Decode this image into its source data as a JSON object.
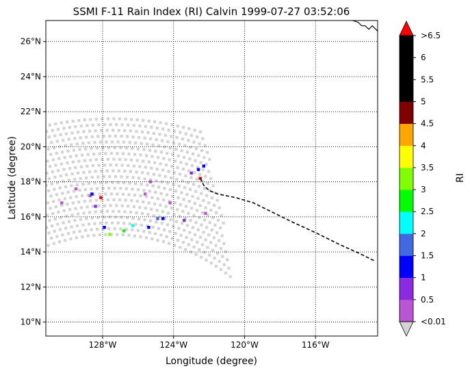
{
  "chart_data": {
    "type": "heatmap",
    "title": "SSMI F-11 Rain Index (RI) Calvin 1999-07-27 03:52:06",
    "xlabel": "Longitude (degree)",
    "ylabel": "Latitude (degree)",
    "xlim": [
      -131.2,
      -112.5
    ],
    "ylim": [
      9.2,
      27.2
    ],
    "x_ticks": [
      -128,
      -124,
      -120,
      -116
    ],
    "x_tick_labels": [
      "128°W",
      "124°W",
      "120°W",
      "116°W"
    ],
    "y_ticks": [
      10,
      12,
      14,
      16,
      18,
      20,
      22,
      24,
      26
    ],
    "y_tick_labels": [
      "10°N",
      "12°N",
      "14°N",
      "16°N",
      "18°N",
      "20°N",
      "22°N",
      "24°N",
      "26°N"
    ],
    "grid": true,
    "swath": {
      "center": [
        -127.5,
        4.5
      ],
      "inner_radius_deg": 10.5,
      "outer_radius_deg": 17.2,
      "left_edge_lon": -131.2,
      "right_edge_lon": [
        -122.3,
        -120.6
      ],
      "no_rain_color": "#d3d3d3"
    },
    "rain_pixels": [
      {
        "lon": -130.3,
        "lat": 16.8,
        "ri": 0.3
      },
      {
        "lon": -129.5,
        "lat": 17.6,
        "ri": 0.3
      },
      {
        "lon": -128.7,
        "lat": 17.2,
        "ri": 0.3
      },
      {
        "lon": -128.4,
        "lat": 16.6,
        "ri": 0.6
      },
      {
        "lon": -128.6,
        "lat": 17.3,
        "ri": 1.2
      },
      {
        "lon": -128.1,
        "lat": 17.1,
        "ri": 6.8
      },
      {
        "lon": -125.6,
        "lat": 17.3,
        "ri": 0.3
      },
      {
        "lon": -125.3,
        "lat": 18.0,
        "ri": 0.3
      },
      {
        "lon": -124.2,
        "lat": 16.8,
        "ri": 0.3
      },
      {
        "lon": -127.6,
        "lat": 15.0,
        "ri": 3.0
      },
      {
        "lon": -126.8,
        "lat": 15.2,
        "ri": 2.8
      },
      {
        "lon": -126.3,
        "lat": 15.5,
        "ri": 2.2
      },
      {
        "lon": -127.9,
        "lat": 15.4,
        "ri": 1.2
      },
      {
        "lon": -125.4,
        "lat": 15.4,
        "ri": 1.2
      },
      {
        "lon": -124.6,
        "lat": 15.9,
        "ri": 1.3
      },
      {
        "lon": -124.9,
        "lat": 15.9,
        "ri": 1.7
      },
      {
        "lon": -122.3,
        "lat": 18.9,
        "ri": 1.2
      },
      {
        "lon": -122.6,
        "lat": 18.7,
        "ri": 1.4
      },
      {
        "lon": -122.5,
        "lat": 18.2,
        "ri": 6.8
      },
      {
        "lon": -123.0,
        "lat": 18.5,
        "ri": 0.7
      },
      {
        "lon": -122.2,
        "lat": 16.2,
        "ri": 0.3
      },
      {
        "lon": -123.4,
        "lat": 15.8,
        "ri": 0.8
      }
    ],
    "track": [
      [
        -122.5,
        18.2
      ],
      [
        -122.3,
        17.8
      ],
      [
        -122.0,
        17.5
      ],
      [
        -121.5,
        17.3
      ],
      [
        -120.5,
        17.1
      ],
      [
        -119.5,
        16.8
      ],
      [
        -118.5,
        16.3
      ],
      [
        -117.3,
        15.7
      ],
      [
        -116.0,
        15.1
      ],
      [
        -114.6,
        14.4
      ],
      [
        -113.5,
        13.9
      ],
      [
        -112.7,
        13.5
      ]
    ],
    "coastline": [
      [
        -113.9,
        27.2
      ],
      [
        -113.6,
        27.1
      ],
      [
        -113.4,
        26.9
      ],
      [
        -113.2,
        26.9
      ],
      [
        -113.0,
        26.7
      ],
      [
        -112.8,
        26.9
      ],
      [
        -112.6,
        26.7
      ],
      [
        -112.5,
        26.6
      ]
    ],
    "colorbar": {
      "label": "RI",
      "levels": [
        0.01,
        0.5,
        1,
        1.5,
        2,
        2.5,
        3,
        3.5,
        4,
        4.5,
        5,
        5.5,
        6,
        6.5
      ],
      "tick_labels": [
        "<0.01",
        "0.5",
        "1",
        "1.5",
        "2",
        "2.5",
        "3",
        "3.5",
        "4",
        "4.5",
        "5",
        "5.5",
        "6",
        ">6.5"
      ],
      "colors": [
        "#ba55d3",
        "#8a2be2",
        "#0000ff",
        "#4169e1",
        "#00ffff",
        "#00ff00",
        "#7fff00",
        "#ffff00",
        "#ffa500",
        "#800000",
        "#000000",
        "#000000",
        "#000000"
      ],
      "under_color": "#d3d3d3",
      "over_color": "#ff0000"
    }
  }
}
